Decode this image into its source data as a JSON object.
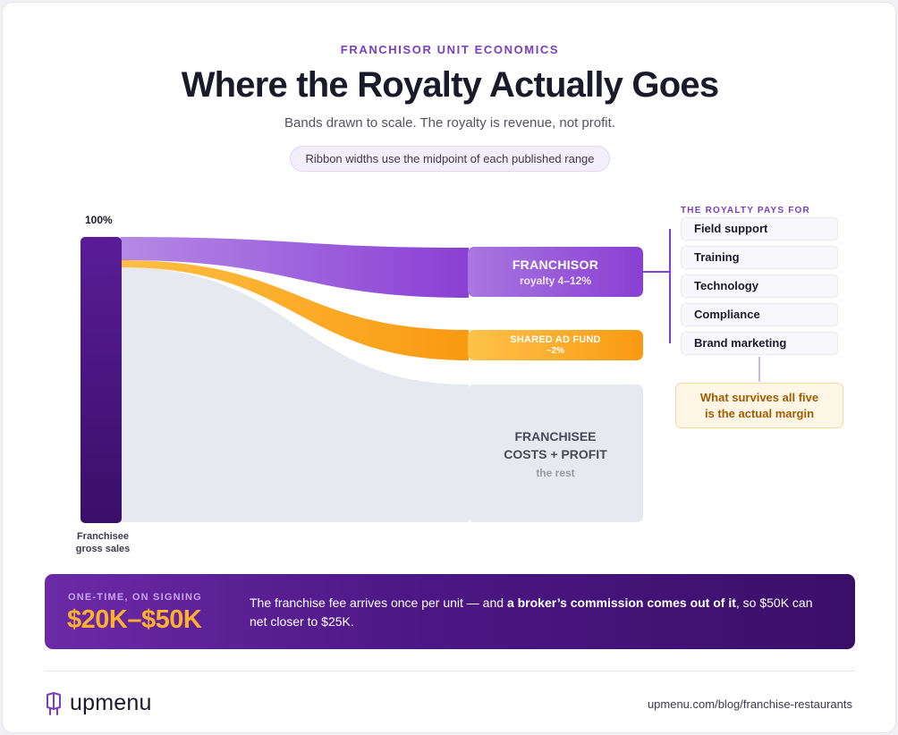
{
  "header": {
    "eyebrow": "FRANCHISOR UNIT ECONOMICS",
    "title": "Where the Royalty Actually Goes",
    "subtitle": "Bands drawn to scale. The royalty is revenue, not profit.",
    "note": "Ribbon widths use the midpoint of each published range"
  },
  "source": {
    "percent": "100%",
    "caption_line1": "Franchisee",
    "caption_line2": "gross sales"
  },
  "nodes": {
    "franchisor": {
      "label": "FRANCHISOR",
      "sublabel": "royalty 4–12%"
    },
    "ad_fund": {
      "label": "SHARED AD FUND",
      "sublabel": "~2%"
    },
    "franchisee": {
      "label_line1": "FRANCHISEE",
      "label_line2": "COSTS + PROFIT",
      "sublabel": "the rest"
    }
  },
  "royalty_pays_for": {
    "heading": "THE ROYALTY PAYS FOR",
    "items": [
      "Field support",
      "Training",
      "Technology",
      "Compliance",
      "Brand marketing"
    ]
  },
  "survive_note": {
    "line1": "What survives all five",
    "line2": "is the actual margin"
  },
  "banner": {
    "kicker": "ONE-TIME, ON SIGNING",
    "amount": "$20K–$50K",
    "text_before": "The franchise fee arrives once per unit — and ",
    "text_bold": "a broker’s commission comes out of it",
    "text_after": ", so $50K can net closer to $25K."
  },
  "footer": {
    "logo_text": "upmenu",
    "url": "upmenu.com/blog/franchise-restaurants"
  },
  "colors": {
    "purple": "#8a3fd4",
    "dark_purple": "#3a0f68",
    "orange": "#f99a10",
    "grey": "#e6e9ef",
    "accent_text": "#7b3ec0"
  },
  "chart_data": {
    "type": "sankey",
    "source": "Franchisee gross sales",
    "flows": [
      {
        "target": "FRANCHISOR",
        "range": "4–12%",
        "midpoint_percent": 8
      },
      {
        "target": "SHARED AD FUND",
        "range": "~2%",
        "midpoint_percent": 2
      },
      {
        "target": "FRANCHISEE COSTS + PROFIT",
        "range": "the rest",
        "midpoint_percent": 90
      }
    ]
  }
}
